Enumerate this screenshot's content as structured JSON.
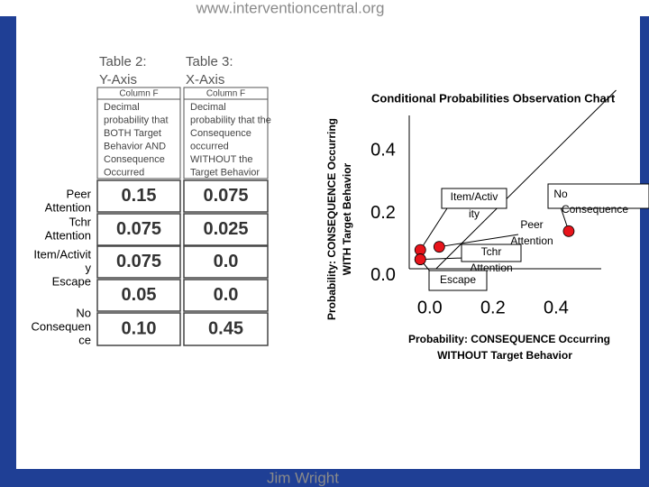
{
  "header": {
    "url": "www.interventioncentral.org"
  },
  "footer": {
    "author": "Jim Wright"
  },
  "tables": [
    {
      "title": "Table 2:",
      "axis": "Y-Axis",
      "column": "Column F",
      "description": [
        "Decimal",
        "probability that",
        "BOTH Target",
        "Behavior AND",
        "Consequence",
        "Occurred"
      ],
      "cells": [
        "0.15",
        "0.075",
        "0.075",
        "0.05",
        "0.10"
      ]
    },
    {
      "title": "Table 3:",
      "axis": "X-Axis",
      "column": "Column F",
      "description": [
        "Decimal",
        "probability that the",
        "Consequence",
        "occurred",
        "WITHOUT the",
        "Target Behavior"
      ],
      "cells": [
        "0.075",
        "0.025",
        "0.0",
        "0.0",
        "0.45"
      ]
    }
  ],
  "row_labels": [
    [
      "Peer",
      "Attention"
    ],
    [
      "Tchr",
      "Attention"
    ],
    [
      "Item/Activit",
      "y",
      "Escape"
    ],
    [
      "No",
      "Consequen",
      "ce"
    ]
  ],
  "chart_data": {
    "type": "scatter",
    "title": "Conditional Probabilities Observation Chart",
    "xlabel": [
      "Probability: CONSEQUENCE Occurring",
      "WITHOUT Target Behavior"
    ],
    "ylabel": [
      "Probability: CONSEQUENCE Occurring",
      "WITH Target Behavior"
    ],
    "x": [
      -0.03,
      0.03,
      -0.03,
      -0.03,
      0.44
    ],
    "series": [
      {
        "color": "#e8141b",
        "values": [
          0.08,
          0.09,
          0.05,
          0.05,
          0.14
        ]
      }
    ],
    "point_labels": [
      [
        "Item/Activ",
        "ity"
      ],
      [
        "Peer",
        "Attention"
      ],
      [
        "Tchr",
        "Attention"
      ],
      [
        "Escape"
      ],
      [
        "No",
        "Consequence"
      ]
    ],
    "xlim": [
      -0.065,
      0.6
    ],
    "ylim": [
      0.02,
      0.59
    ],
    "xticks": [
      {
        "value": 0,
        "label": "0.0"
      },
      0.2,
      0.4
    ],
    "yticks": [
      {
        "value": 0,
        "label": "0.0"
      },
      0.2,
      0.4
    ]
  }
}
